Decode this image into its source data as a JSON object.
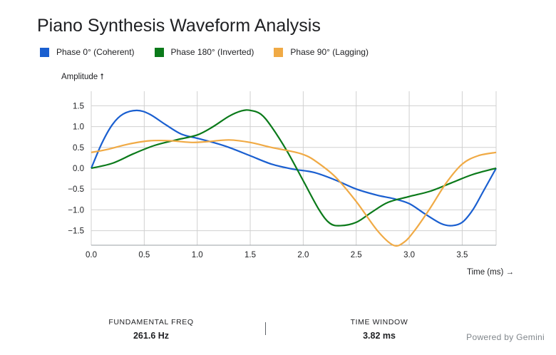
{
  "title": "Piano Synthesis Waveform Analysis",
  "chart_data": {
    "type": "line",
    "ylabel": "Amplitude ⭡",
    "xlabel": "Time (ms) →",
    "xlim": [
      0,
      3.82
    ],
    "ylim": [
      -1.85,
      1.85
    ],
    "x_ticks": [
      0.0,
      0.5,
      1.0,
      1.5,
      2.0,
      2.5,
      3.0,
      3.5
    ],
    "x_tick_labels": [
      "0.0",
      "0.5",
      "1.0",
      "1.5",
      "2.0",
      "2.5",
      "3.0",
      "3.5"
    ],
    "y_ticks": [
      1.5,
      1.0,
      0.5,
      0.0,
      -0.5,
      -1.0,
      -1.5
    ],
    "y_tick_labels": [
      "1.5",
      "1.0",
      "0.5",
      "0.0",
      "−0.5",
      "−1.0",
      "−1.5"
    ],
    "grid": true,
    "legend_position": "top-left",
    "series": [
      {
        "name": "Phase 0° (Coherent)",
        "color": "#1a5fd0",
        "x": [
          0,
          0.1,
          0.2,
          0.3,
          0.43,
          0.55,
          0.7,
          0.85,
          1.0,
          1.15,
          1.3,
          1.5,
          1.7,
          1.9,
          2.1,
          2.3,
          2.5,
          2.7,
          2.85,
          3.0,
          3.15,
          3.3,
          3.4,
          3.5,
          3.6,
          3.7,
          3.82
        ],
        "y": [
          0,
          0.6,
          1.05,
          1.3,
          1.39,
          1.3,
          1.05,
          0.82,
          0.72,
          0.62,
          0.5,
          0.3,
          0.1,
          -0.02,
          -0.1,
          -0.28,
          -0.5,
          -0.65,
          -0.73,
          -0.85,
          -1.1,
          -1.33,
          -1.38,
          -1.3,
          -1.0,
          -0.55,
          0
        ]
      },
      {
        "name": "Phase 180° (Inverted)",
        "color": "#0b7a1a",
        "x": [
          0,
          0.2,
          0.4,
          0.6,
          0.8,
          1.0,
          1.15,
          1.3,
          1.42,
          1.5,
          1.6,
          1.7,
          1.85,
          2.0,
          2.15,
          2.25,
          2.35,
          2.5,
          2.65,
          2.8,
          3.0,
          3.2,
          3.4,
          3.6,
          3.82
        ],
        "y": [
          0,
          0.12,
          0.35,
          0.55,
          0.68,
          0.8,
          1.0,
          1.25,
          1.38,
          1.39,
          1.3,
          1.0,
          0.4,
          -0.3,
          -1.0,
          -1.32,
          -1.38,
          -1.3,
          -1.05,
          -0.82,
          -0.68,
          -0.55,
          -0.35,
          -0.15,
          0
        ]
      },
      {
        "name": "Phase 90° (Lagging)",
        "color": "#f0aa45",
        "x": [
          0,
          0.15,
          0.35,
          0.55,
          0.75,
          0.95,
          1.1,
          1.3,
          1.5,
          1.7,
          1.9,
          2.0,
          2.1,
          2.3,
          2.5,
          2.7,
          2.85,
          2.95,
          3.05,
          3.2,
          3.35,
          3.5,
          3.65,
          3.82
        ],
        "y": [
          0.38,
          0.45,
          0.58,
          0.66,
          0.66,
          0.62,
          0.64,
          0.68,
          0.62,
          0.5,
          0.4,
          0.33,
          0.2,
          -0.2,
          -0.8,
          -1.5,
          -1.85,
          -1.78,
          -1.5,
          -0.95,
          -0.35,
          0.1,
          0.3,
          0.38
        ]
      }
    ]
  },
  "footer": {
    "stats": [
      {
        "label": "FUNDAMENTAL FREQ",
        "value": "261.6 Hz"
      },
      {
        "label": "TIME WINDOW",
        "value": "3.82 ms"
      }
    ],
    "powered_by": "Powered by Gemini"
  }
}
